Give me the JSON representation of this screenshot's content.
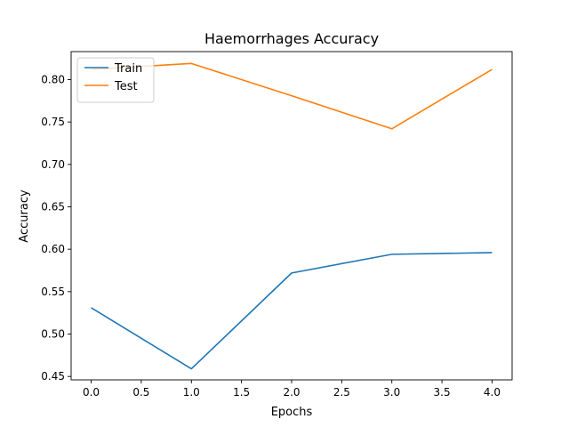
{
  "chart_data": {
    "type": "line",
    "title": "Haemorrhages Accuracy",
    "xlabel": "Epochs",
    "ylabel": "Accuracy",
    "x": [
      0,
      1,
      2,
      3,
      4
    ],
    "xlim": [
      -0.2,
      4.2
    ],
    "ylim": [
      0.446,
      0.833
    ],
    "xticks": [
      0.0,
      0.5,
      1.0,
      1.5,
      2.0,
      2.5,
      3.0,
      3.5,
      4.0
    ],
    "xtick_labels": [
      "0.0",
      "0.5",
      "1.0",
      "1.5",
      "2.0",
      "2.5",
      "3.0",
      "3.5",
      "4.0"
    ],
    "yticks": [
      0.45,
      0.5,
      0.55,
      0.6,
      0.65,
      0.7,
      0.75,
      0.8
    ],
    "ytick_labels": [
      "0.45",
      "0.50",
      "0.55",
      "0.60",
      "0.65",
      "0.70",
      "0.75",
      "0.80"
    ],
    "grid": false,
    "legend_position": "top-left",
    "series": [
      {
        "name": "Train",
        "color": "#1f77b4",
        "values": [
          0.531,
          0.459,
          0.572,
          0.594,
          0.596
        ]
      },
      {
        "name": "Test",
        "color": "#ff7f0e",
        "values": [
          0.812,
          0.819,
          0.781,
          0.742,
          0.812
        ]
      }
    ]
  }
}
